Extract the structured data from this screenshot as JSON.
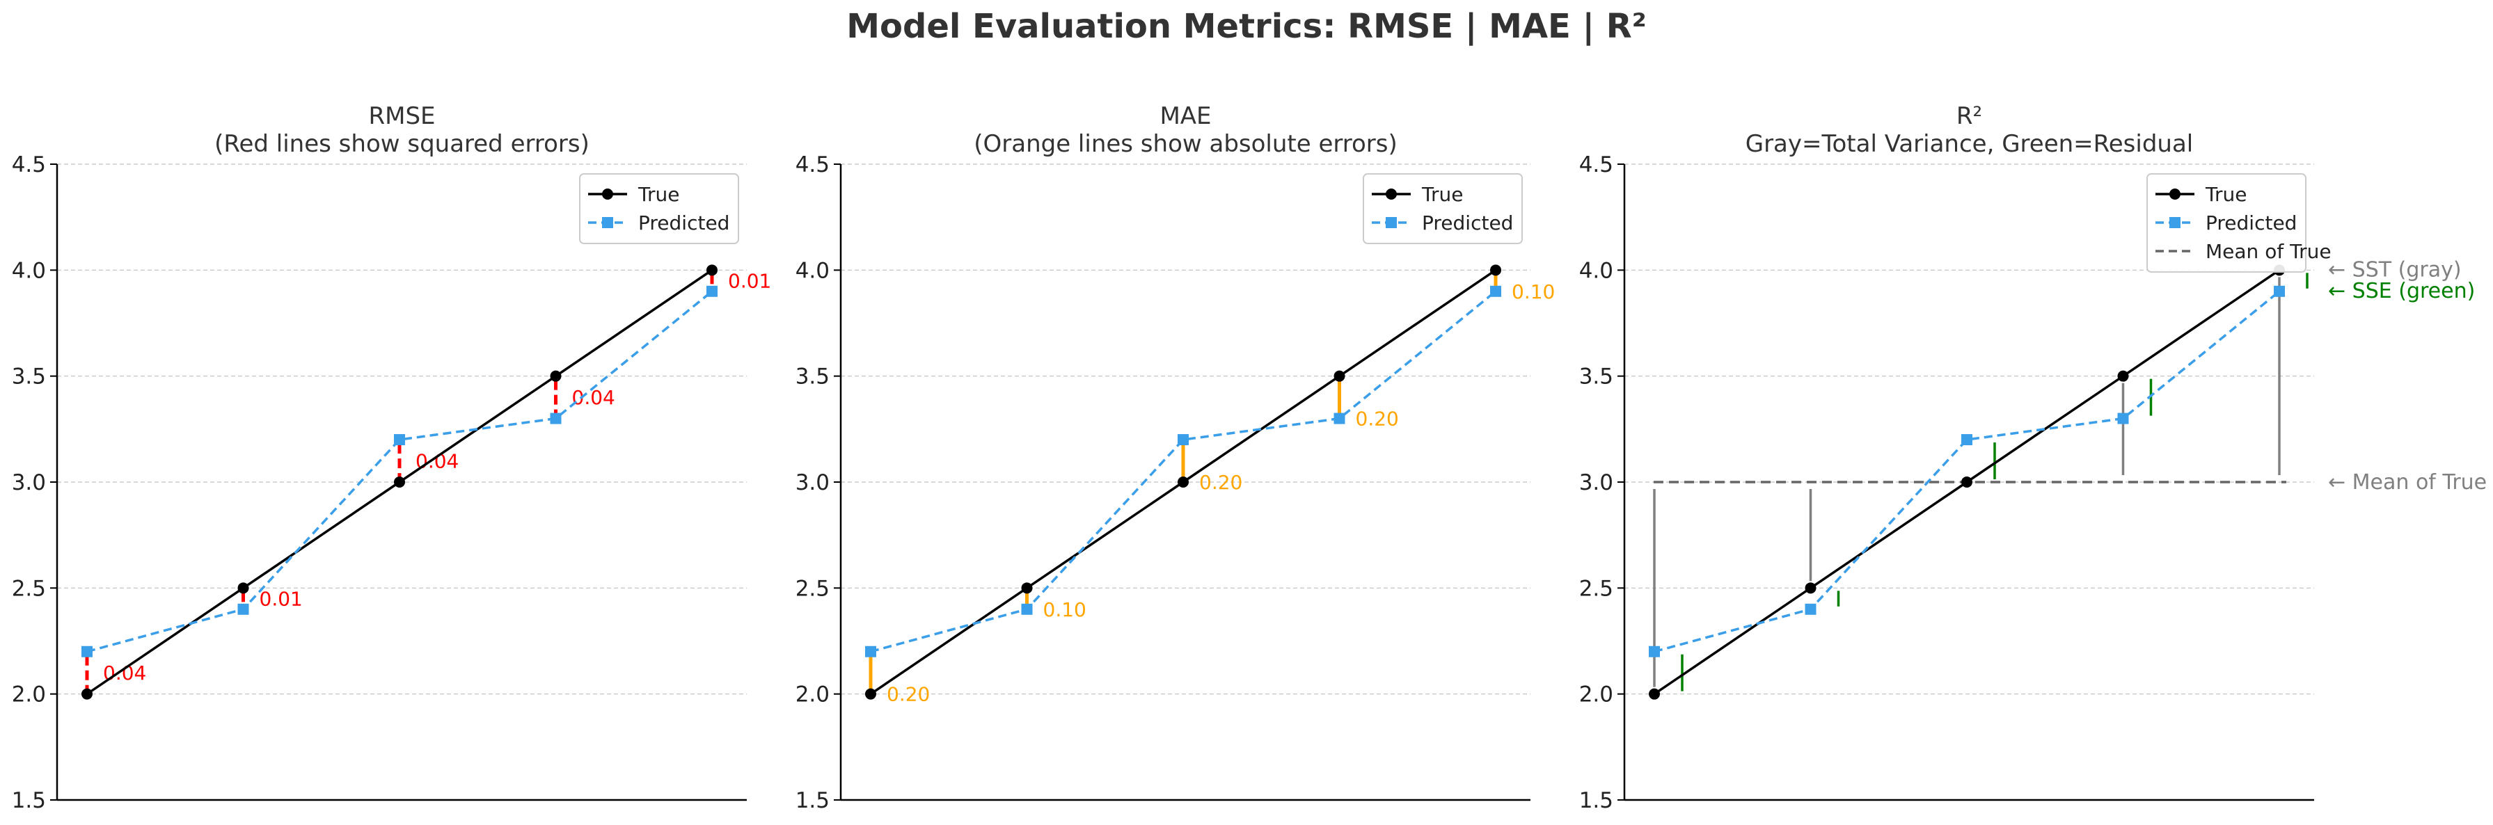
{
  "figure": {
    "title": "Model Evaluation Metrics: RMSE | MAE | R²"
  },
  "colors": {
    "true_line": "#000000",
    "predicted_line": "#3b9ee8",
    "rmse_error": "#ff0000",
    "mae_error": "#ffa500",
    "r2_total": "#808080",
    "r2_residual": "#008000",
    "grid": "#cccccc",
    "title_text": "#333333"
  },
  "chart_data": [
    {
      "type": "line",
      "panel": "rmse",
      "title": "RMSE",
      "subtitle": "(Red lines show squared errors)",
      "x": [
        1,
        2,
        3,
        4,
        5
      ],
      "series": [
        {
          "name": "True",
          "values": [
            2.0,
            2.5,
            3.0,
            3.5,
            4.0
          ],
          "style": "solid-circle"
        },
        {
          "name": "Predicted",
          "values": [
            2.2,
            2.4,
            3.2,
            3.3,
            3.9
          ],
          "style": "dashed-square"
        }
      ],
      "error_labels": [
        "0.04",
        "0.01",
        "0.04",
        "0.04",
        "0.01"
      ],
      "error_style": "red dashed vertical segments",
      "ylim": [
        1.5,
        4.5
      ],
      "yticks": [
        "1.5",
        "2.0",
        "2.5",
        "3.0",
        "3.5",
        "4.0",
        "4.5"
      ],
      "xlabel": "",
      "ylabel": "",
      "grid": "horizontal dashed",
      "legend": "top-right"
    },
    {
      "type": "line",
      "panel": "mae",
      "title": "MAE",
      "subtitle": "(Orange lines show absolute errors)",
      "x": [
        1,
        2,
        3,
        4,
        5
      ],
      "series": [
        {
          "name": "True",
          "values": [
            2.0,
            2.5,
            3.0,
            3.5,
            4.0
          ],
          "style": "solid-circle"
        },
        {
          "name": "Predicted",
          "values": [
            2.2,
            2.4,
            3.2,
            3.3,
            3.9
          ],
          "style": "dashed-square"
        }
      ],
      "error_labels": [
        "0.20",
        "0.10",
        "0.20",
        "0.20",
        "0.10"
      ],
      "error_style": "orange solid vertical segments",
      "ylim": [
        1.5,
        4.5
      ],
      "yticks": [
        "1.5",
        "2.0",
        "2.5",
        "3.0",
        "3.5",
        "4.0",
        "4.5"
      ],
      "xlabel": "",
      "ylabel": "",
      "grid": "horizontal dashed",
      "legend": "top-right"
    },
    {
      "type": "line",
      "panel": "r2",
      "title": "R²",
      "subtitle": "Gray=Total Variance, Green=Residual",
      "x": [
        1,
        2,
        3,
        4,
        5
      ],
      "series": [
        {
          "name": "True",
          "values": [
            2.0,
            2.5,
            3.0,
            3.5,
            4.0
          ],
          "style": "solid-circle"
        },
        {
          "name": "Predicted",
          "values": [
            2.2,
            2.4,
            3.2,
            3.3,
            3.9
          ],
          "style": "dashed-square"
        },
        {
          "name": "Mean of True",
          "value": 3.0,
          "style": "gray dashed horizontal"
        }
      ],
      "ylim": [
        1.5,
        4.5
      ],
      "yticks": [
        "1.5",
        "2.0",
        "2.5",
        "3.0",
        "3.5",
        "4.0",
        "4.5"
      ],
      "xlabel": "",
      "ylabel": "",
      "grid": "horizontal dashed",
      "legend": "top-right",
      "annotations": [
        "← SST (gray)",
        "← SSE (green)",
        "← Mean of True"
      ]
    }
  ]
}
